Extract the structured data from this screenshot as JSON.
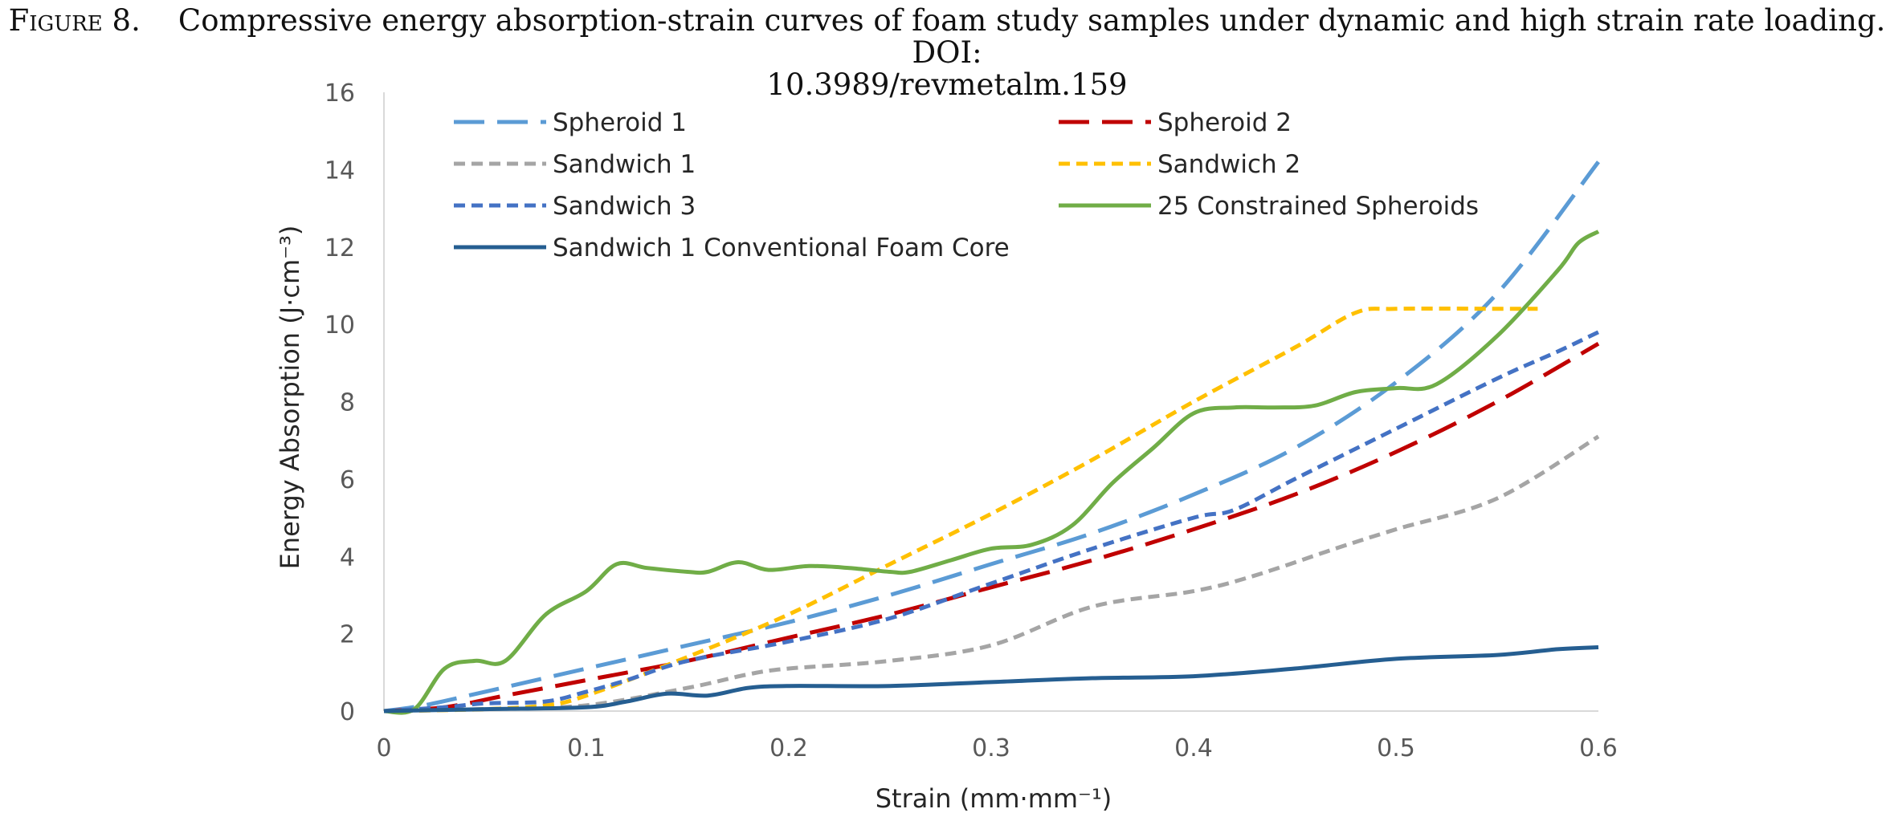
{
  "caption": {
    "figure_label": "Figure 8.",
    "text_line1": "Compressive energy absorption-strain curves of foam study samples under dynamic and high strain rate loading. DOI:",
    "text_line2": "10.3989/revmetalm.159"
  },
  "chart_data": {
    "type": "line",
    "title": "",
    "xlabel": "Strain (mm·mm⁻¹)",
    "ylabel": "Energy Absorption (J·cm⁻³)",
    "xlim": [
      0,
      0.6
    ],
    "ylim": [
      0,
      16
    ],
    "xticks": [
      0,
      0.1,
      0.2,
      0.3,
      0.4,
      0.5,
      0.6
    ],
    "xtick_labels": [
      "0",
      "0.1",
      "0.2",
      "0.3",
      "0.4",
      "0.5",
      "0.6"
    ],
    "yticks": [
      0,
      2,
      4,
      6,
      8,
      10,
      12,
      14,
      16
    ],
    "ytick_labels": [
      "0",
      "2",
      "4",
      "6",
      "8",
      "10",
      "12",
      "14",
      "16"
    ],
    "grid": false,
    "legend_position": "top, inside plot, two columns",
    "series": [
      {
        "name": "Spheroid 1",
        "color": "#5b9bd5",
        "dash": "long-dash",
        "x": [
          0,
          0.02,
          0.05,
          0.1,
          0.15,
          0.2,
          0.25,
          0.3,
          0.35,
          0.4,
          0.45,
          0.5,
          0.55,
          0.6
        ],
        "y": [
          0,
          0.15,
          0.5,
          1.1,
          1.7,
          2.3,
          3.0,
          3.8,
          4.6,
          5.6,
          6.8,
          8.5,
          10.8,
          14.2
        ]
      },
      {
        "name": "Spheroid 2",
        "color": "#c00000",
        "dash": "long-dash",
        "x": [
          0,
          0.03,
          0.06,
          0.1,
          0.15,
          0.2,
          0.25,
          0.3,
          0.35,
          0.4,
          0.45,
          0.5,
          0.55,
          0.6
        ],
        "y": [
          0,
          0.1,
          0.4,
          0.8,
          1.3,
          1.9,
          2.5,
          3.2,
          3.9,
          4.7,
          5.6,
          6.7,
          8.0,
          9.5
        ]
      },
      {
        "name": "Sandwich 1",
        "color": "#a5a5a5",
        "dash": "short-dash",
        "x": [
          0,
          0.05,
          0.1,
          0.15,
          0.18,
          0.2,
          0.25,
          0.3,
          0.35,
          0.4,
          0.43,
          0.47,
          0.5,
          0.55,
          0.6
        ],
        "y": [
          0,
          0.05,
          0.15,
          0.6,
          0.95,
          1.1,
          1.3,
          1.7,
          2.7,
          3.1,
          3.5,
          4.2,
          4.7,
          5.5,
          7.1
        ]
      },
      {
        "name": "Sandwich 2",
        "color": "#ffc000",
        "dash": "short-dash",
        "x": [
          0,
          0.05,
          0.08,
          0.1,
          0.15,
          0.2,
          0.25,
          0.3,
          0.35,
          0.4,
          0.45,
          0.48,
          0.5,
          0.55,
          0.57
        ],
        "y": [
          0,
          0.05,
          0.15,
          0.4,
          1.4,
          2.5,
          3.8,
          5.1,
          6.5,
          8.0,
          9.4,
          10.3,
          10.4,
          10.4,
          10.4
        ]
      },
      {
        "name": "Sandwich 3",
        "color": "#4472c4",
        "dash": "short-dash",
        "x": [
          0,
          0.03,
          0.05,
          0.08,
          0.1,
          0.12,
          0.15,
          0.2,
          0.25,
          0.3,
          0.35,
          0.4,
          0.42,
          0.45,
          0.5,
          0.55,
          0.58,
          0.6
        ],
        "y": [
          0,
          0.1,
          0.2,
          0.25,
          0.5,
          0.8,
          1.3,
          1.8,
          2.4,
          3.3,
          4.2,
          5.0,
          5.2,
          6.0,
          7.3,
          8.6,
          9.3,
          9.8
        ]
      },
      {
        "name": "25 Constrained Spheroids",
        "color": "#70ad47",
        "dash": "solid",
        "x": [
          0,
          0.015,
          0.03,
          0.045,
          0.06,
          0.08,
          0.1,
          0.115,
          0.13,
          0.15,
          0.16,
          0.175,
          0.19,
          0.21,
          0.23,
          0.25,
          0.26,
          0.28,
          0.3,
          0.32,
          0.34,
          0.36,
          0.38,
          0.4,
          0.42,
          0.44,
          0.46,
          0.48,
          0.5,
          0.52,
          0.55,
          0.58,
          0.59,
          0.6
        ],
        "y": [
          0,
          0.05,
          1.1,
          1.3,
          1.3,
          2.5,
          3.1,
          3.8,
          3.7,
          3.6,
          3.6,
          3.85,
          3.65,
          3.75,
          3.7,
          3.6,
          3.6,
          3.9,
          4.2,
          4.3,
          4.8,
          5.9,
          6.8,
          7.7,
          7.85,
          7.85,
          7.9,
          8.25,
          8.35,
          8.45,
          9.7,
          11.4,
          12.1,
          12.4
        ]
      },
      {
        "name": "Sandwich 1 Conventional Foam Core",
        "color": "#255e91",
        "dash": "solid",
        "x": [
          0,
          0.05,
          0.1,
          0.12,
          0.14,
          0.16,
          0.18,
          0.2,
          0.25,
          0.3,
          0.35,
          0.4,
          0.45,
          0.5,
          0.55,
          0.58,
          0.6
        ],
        "y": [
          0,
          0.05,
          0.1,
          0.25,
          0.45,
          0.4,
          0.6,
          0.65,
          0.65,
          0.75,
          0.85,
          0.9,
          1.1,
          1.35,
          1.45,
          1.6,
          1.65
        ]
      }
    ]
  }
}
